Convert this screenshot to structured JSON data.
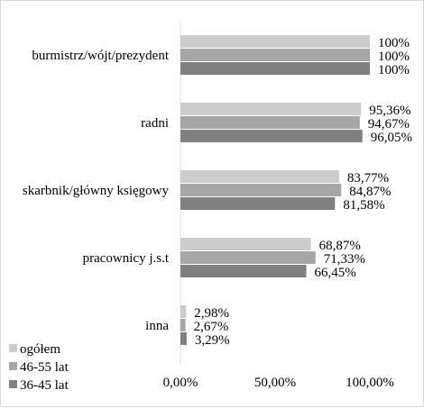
{
  "chart_data": {
    "type": "bar",
    "orientation": "horizontal",
    "categories": [
      "burmistrz/wójt/prezydent",
      "radni",
      "skarbnik/główny księgowy",
      "pracownicy j.s.t",
      "inna"
    ],
    "series": [
      {
        "name": "ogółem",
        "color": "#cccccc",
        "values": [
          100,
          95.36,
          83.77,
          68.87,
          2.98
        ],
        "labels": [
          "100%",
          "95,36%",
          "83,77%",
          "68,87%",
          "2,98%"
        ]
      },
      {
        "name": "46-55 lat",
        "color": "#a6a6a6",
        "values": [
          100,
          94.67,
          84.87,
          71.33,
          2.67
        ],
        "labels": [
          "100%",
          "94,67%",
          "84,87%",
          "71,33%",
          "2,67%"
        ]
      },
      {
        "name": "36-45 lat",
        "color": "#808080",
        "values": [
          100,
          96.05,
          81.58,
          66.45,
          3.29
        ],
        "labels": [
          "100%",
          "96,05%",
          "81,58%",
          "66,45%",
          "3,29%"
        ]
      }
    ],
    "xticks": [
      "0,00%",
      "50,00%",
      "100,00%"
    ],
    "xlim": [
      0,
      100
    ],
    "grid": false,
    "legend_position": "bottom-left"
  }
}
